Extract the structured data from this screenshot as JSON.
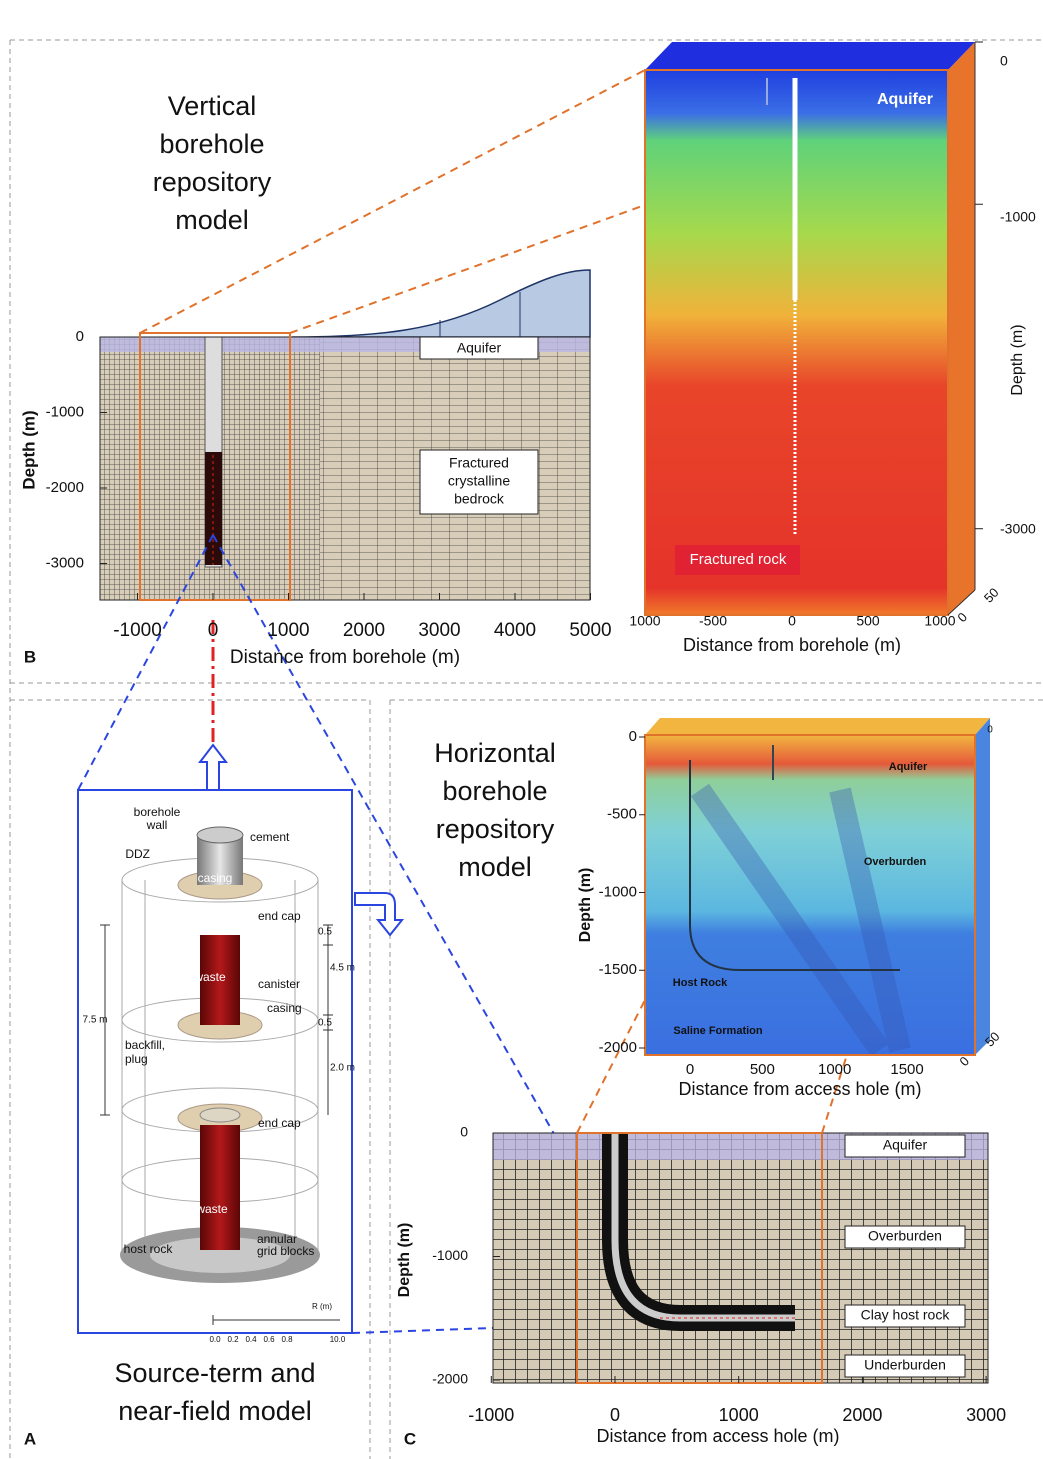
{
  "panel_b": {
    "letter": "B",
    "title_lines": [
      "Vertical",
      "borehole",
      "repository",
      "model"
    ],
    "section": {
      "x_label": "Distance from borehole (m)",
      "y_label": "Depth (m)",
      "xticks": [
        -1000,
        0,
        1000,
        2000,
        3000,
        4000,
        5000
      ],
      "yticks": [
        0,
        -1000,
        -2000,
        -3000
      ],
      "aquifer": "Aquifer",
      "bedrock_lines": [
        "Fractured",
        "crystalline",
        "bedrock"
      ]
    },
    "model_3d": {
      "x_label": "Distance from borehole (m)",
      "y_label": "Depth (m)",
      "xticks": [
        1000,
        -500,
        0,
        500,
        1000
      ],
      "yticks": [
        0,
        -1000,
        -3000
      ],
      "zticks": [
        50,
        0
      ],
      "aquifer": "Aquifer",
      "rock": "Fractured rock"
    }
  },
  "panel_a": {
    "letter": "A",
    "caption_lines": [
      "Source-term and",
      "near-field model"
    ],
    "labels": [
      "borehole",
      "wall",
      "cement",
      "DDZ",
      "casing",
      "end cap",
      "canister",
      "casing",
      "waste",
      "backfill,",
      "plug",
      "end cap",
      "waste",
      "host rock",
      "annular",
      "grid blocks"
    ],
    "dimensions": [
      "0.5",
      "4.5 m",
      "0.5",
      "2.0 m",
      "7.5 m"
    ],
    "scale_label": "R (m)",
    "scale_ticks": [
      "0.0",
      "0.2",
      "0.4",
      "0.6",
      "0.8",
      "10.0"
    ]
  },
  "panel_c": {
    "letter": "C",
    "title_lines": [
      "Horizontal",
      "borehole",
      "repository",
      "model"
    ],
    "model_3d": {
      "x_label": "Distance from access hole (m)",
      "y_label": "Depth (m)",
      "xticks": [
        0,
        500,
        1000,
        1500
      ],
      "yticks": [
        0,
        -500,
        -1000,
        -1500,
        -2000
      ],
      "zticks": [
        50,
        0
      ],
      "corner_tick": 0,
      "layers": [
        "Aquifer",
        "Overburden",
        "Host Rock",
        "Saline Formation"
      ]
    },
    "section": {
      "x_label": "Distance from access hole (m)",
      "y_label": "Depth (m)",
      "xticks": [
        -1000,
        0,
        1000,
        2000,
        3000
      ],
      "yticks": [
        0,
        -1000,
        -2000
      ],
      "layers": [
        "Aquifer",
        "Overburden",
        "Clay host rock",
        "Underburden"
      ]
    }
  }
}
